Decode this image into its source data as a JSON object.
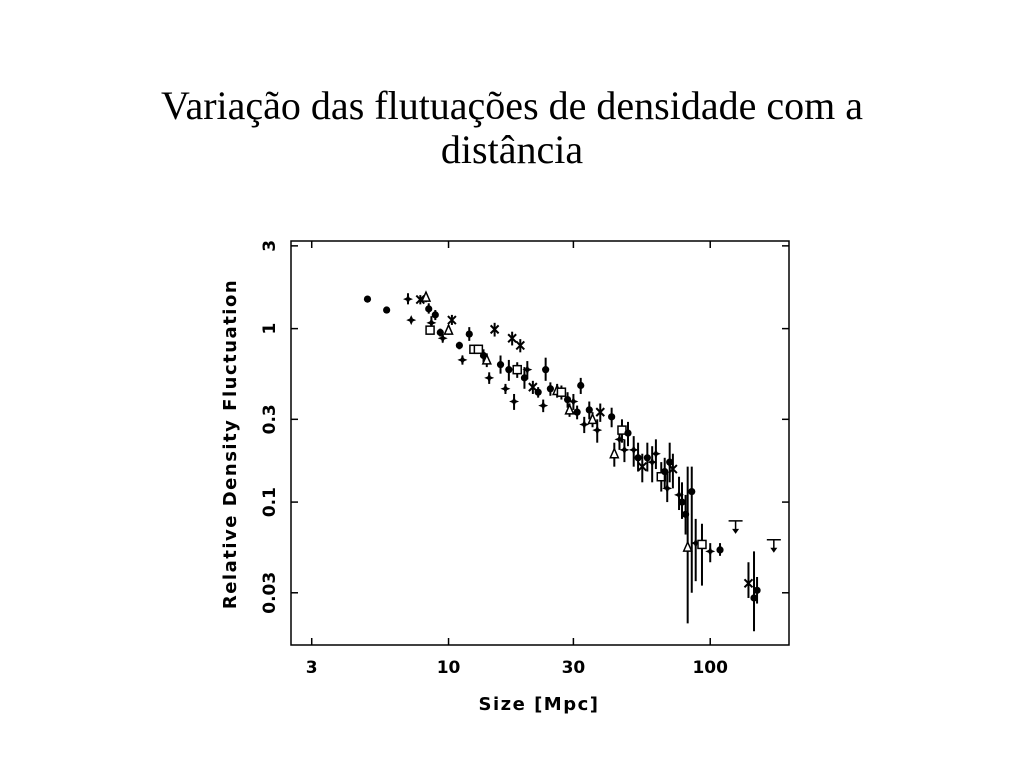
{
  "slide": {
    "title_line1": "Variação das flutuações de densidade com a",
    "title_line2": "distância"
  },
  "chart_data": {
    "type": "scatter",
    "title": "Variação das flutuações de densidade com a distância",
    "xlabel": "Size [Mpc]",
    "ylabel": "Relative Density Fluctuation",
    "x_scale": "log",
    "y_scale": "log",
    "xlim": [
      2.5,
      200
    ],
    "ylim": [
      0.015,
      3.2
    ],
    "x_ticks": [
      {
        "value": 3,
        "label": "3"
      },
      {
        "value": 10,
        "label": "10"
      },
      {
        "value": 30,
        "label": "30"
      },
      {
        "value": 100,
        "label": "100"
      }
    ],
    "y_ticks": [
      {
        "value": 3,
        "label": "3"
      },
      {
        "value": 1,
        "label": "1"
      },
      {
        "value": 0.3,
        "label": "0.3"
      },
      {
        "value": 0.1,
        "label": "0.1"
      },
      {
        "value": 0.03,
        "label": "0.03"
      }
    ],
    "grid": false,
    "legend": "none",
    "color": "#000000",
    "points": [
      {
        "x": 4.9,
        "y": 1.48,
        "lo": 1.46,
        "hi": 1.5,
        "m": "c"
      },
      {
        "x": 5.8,
        "y": 1.28,
        "lo": 1.25,
        "hi": 1.31,
        "m": "c"
      },
      {
        "x": 7.0,
        "y": 1.48,
        "lo": 1.38,
        "hi": 1.6,
        "m": "s"
      },
      {
        "x": 7.2,
        "y": 1.12,
        "lo": 1.08,
        "hi": 1.16,
        "m": "s"
      },
      {
        "x": 7.8,
        "y": 1.47,
        "lo": 1.38,
        "hi": 1.56,
        "m": "x"
      },
      {
        "x": 8.2,
        "y": 1.52,
        "lo": 1.42,
        "hi": 1.62,
        "m": "t"
      },
      {
        "x": 8.4,
        "y": 1.3,
        "lo": 1.22,
        "hi": 1.4,
        "m": "c"
      },
      {
        "x": 8.6,
        "y": 1.08,
        "lo": 1.0,
        "hi": 1.18,
        "m": "s"
      },
      {
        "x": 8.9,
        "y": 1.2,
        "lo": 1.12,
        "hi": 1.28,
        "m": "c"
      },
      {
        "x": 8.5,
        "y": 0.98,
        "lo": 0.95,
        "hi": 1.02,
        "m": "o"
      },
      {
        "x": 9.3,
        "y": 0.95,
        "lo": 0.9,
        "hi": 1.0,
        "m": "c"
      },
      {
        "x": 9.5,
        "y": 0.88,
        "lo": 0.83,
        "hi": 0.93,
        "m": "s"
      },
      {
        "x": 10.0,
        "y": 0.98,
        "lo": 0.92,
        "hi": 1.05,
        "m": "t"
      },
      {
        "x": 10.3,
        "y": 1.12,
        "lo": 1.05,
        "hi": 1.2,
        "m": "x"
      },
      {
        "x": 11.0,
        "y": 0.8,
        "lo": 0.76,
        "hi": 0.84,
        "m": "c"
      },
      {
        "x": 11.3,
        "y": 0.66,
        "lo": 0.62,
        "hi": 0.7,
        "m": "s"
      },
      {
        "x": 12.0,
        "y": 0.93,
        "lo": 0.85,
        "hi": 1.02,
        "m": "c"
      },
      {
        "x": 12.5,
        "y": 0.76,
        "lo": 0.73,
        "hi": 0.79,
        "m": "o"
      },
      {
        "x": 13.0,
        "y": 0.76,
        "lo": 0.73,
        "hi": 0.79,
        "m": "o"
      },
      {
        "x": 13.6,
        "y": 0.7,
        "lo": 0.64,
        "hi": 0.76,
        "m": "c"
      },
      {
        "x": 14.0,
        "y": 0.66,
        "lo": 0.6,
        "hi": 0.72,
        "m": "t"
      },
      {
        "x": 14.3,
        "y": 0.52,
        "lo": 0.48,
        "hi": 0.56,
        "m": "s"
      },
      {
        "x": 15.0,
        "y": 0.99,
        "lo": 0.9,
        "hi": 1.08,
        "m": "x"
      },
      {
        "x": 15.8,
        "y": 0.62,
        "lo": 0.55,
        "hi": 0.7,
        "m": "c"
      },
      {
        "x": 16.5,
        "y": 0.45,
        "lo": 0.42,
        "hi": 0.48,
        "m": "s"
      },
      {
        "x": 17.0,
        "y": 0.58,
        "lo": 0.5,
        "hi": 0.66,
        "m": "c"
      },
      {
        "x": 17.5,
        "y": 0.88,
        "lo": 0.8,
        "hi": 0.96,
        "m": "x"
      },
      {
        "x": 17.8,
        "y": 0.38,
        "lo": 0.34,
        "hi": 0.42,
        "m": "s"
      },
      {
        "x": 18.3,
        "y": 0.58,
        "lo": 0.52,
        "hi": 0.64,
        "m": "o"
      },
      {
        "x": 18.8,
        "y": 0.8,
        "lo": 0.73,
        "hi": 0.87,
        "m": "x"
      },
      {
        "x": 19.5,
        "y": 0.52,
        "lo": 0.45,
        "hi": 0.6,
        "m": "c"
      },
      {
        "x": 20.0,
        "y": 0.58,
        "lo": 0.51,
        "hi": 0.65,
        "m": "s"
      },
      {
        "x": 21.0,
        "y": 0.46,
        "lo": 0.42,
        "hi": 0.5,
        "m": "x"
      },
      {
        "x": 22.0,
        "y": 0.43,
        "lo": 0.4,
        "hi": 0.46,
        "m": "c"
      },
      {
        "x": 23.0,
        "y": 0.36,
        "lo": 0.33,
        "hi": 0.39,
        "m": "s"
      },
      {
        "x": 23.5,
        "y": 0.58,
        "lo": 0.5,
        "hi": 0.68,
        "m": "c"
      },
      {
        "x": 24.5,
        "y": 0.45,
        "lo": 0.41,
        "hi": 0.49,
        "m": "c"
      },
      {
        "x": 26.0,
        "y": 0.44,
        "lo": 0.4,
        "hi": 0.48,
        "m": "t"
      },
      {
        "x": 27.0,
        "y": 0.43,
        "lo": 0.39,
        "hi": 0.47,
        "m": "o"
      },
      {
        "x": 28.5,
        "y": 0.39,
        "lo": 0.35,
        "hi": 0.43,
        "m": "c"
      },
      {
        "x": 29.0,
        "y": 0.34,
        "lo": 0.31,
        "hi": 0.37,
        "m": "t"
      },
      {
        "x": 30.0,
        "y": 0.38,
        "lo": 0.34,
        "hi": 0.42,
        "m": "s"
      },
      {
        "x": 31.0,
        "y": 0.33,
        "lo": 0.3,
        "hi": 0.36,
        "m": "c"
      },
      {
        "x": 32.0,
        "y": 0.47,
        "lo": 0.42,
        "hi": 0.52,
        "m": "c"
      },
      {
        "x": 33.0,
        "y": 0.28,
        "lo": 0.25,
        "hi": 0.31,
        "m": "s"
      },
      {
        "x": 34.5,
        "y": 0.34,
        "lo": 0.3,
        "hi": 0.38,
        "m": "c"
      },
      {
        "x": 35.5,
        "y": 0.3,
        "lo": 0.27,
        "hi": 0.33,
        "m": "t"
      },
      {
        "x": 37.0,
        "y": 0.26,
        "lo": 0.22,
        "hi": 0.3,
        "m": "s"
      },
      {
        "x": 38.0,
        "y": 0.33,
        "lo": 0.29,
        "hi": 0.37,
        "m": "x"
      },
      {
        "x": 42.0,
        "y": 0.31,
        "lo": 0.27,
        "hi": 0.35,
        "m": "c"
      },
      {
        "x": 43.0,
        "y": 0.19,
        "lo": 0.16,
        "hi": 0.22,
        "m": "t"
      },
      {
        "x": 45.0,
        "y": 0.23,
        "lo": 0.2,
        "hi": 0.27,
        "m": "s"
      },
      {
        "x": 46.0,
        "y": 0.26,
        "lo": 0.22,
        "hi": 0.3,
        "m": "o"
      },
      {
        "x": 47.0,
        "y": 0.2,
        "lo": 0.17,
        "hi": 0.23,
        "m": "s"
      },
      {
        "x": 48.5,
        "y": 0.25,
        "lo": 0.21,
        "hi": 0.29,
        "m": "c"
      },
      {
        "x": 51.0,
        "y": 0.2,
        "lo": 0.16,
        "hi": 0.24,
        "m": "s"
      },
      {
        "x": 53.0,
        "y": 0.18,
        "lo": 0.15,
        "hi": 0.22,
        "m": "c"
      },
      {
        "x": 55.0,
        "y": 0.16,
        "lo": 0.13,
        "hi": 0.19,
        "m": "x"
      },
      {
        "x": 57.5,
        "y": 0.18,
        "lo": 0.15,
        "hi": 0.22,
        "m": "c"
      },
      {
        "x": 60.0,
        "y": 0.17,
        "lo": 0.13,
        "hi": 0.21,
        "m": "s"
      },
      {
        "x": 62.0,
        "y": 0.19,
        "lo": 0.155,
        "hi": 0.23,
        "m": "s"
      },
      {
        "x": 65.0,
        "y": 0.14,
        "lo": 0.115,
        "hi": 0.17,
        "m": "o"
      },
      {
        "x": 67.0,
        "y": 0.15,
        "lo": 0.12,
        "hi": 0.18,
        "m": "c"
      },
      {
        "x": 68.5,
        "y": 0.12,
        "lo": 0.1,
        "hi": 0.15,
        "m": "s"
      },
      {
        "x": 70.0,
        "y": 0.17,
        "lo": 0.13,
        "hi": 0.22,
        "m": "c"
      },
      {
        "x": 72.0,
        "y": 0.155,
        "lo": 0.12,
        "hi": 0.19,
        "m": "x"
      },
      {
        "x": 76.0,
        "y": 0.11,
        "lo": 0.09,
        "hi": 0.14,
        "m": "s"
      },
      {
        "x": 78.0,
        "y": 0.1,
        "lo": 0.08,
        "hi": 0.13,
        "m": "c"
      },
      {
        "x": 80.5,
        "y": 0.085,
        "lo": 0.065,
        "hi": 0.11,
        "m": "c"
      },
      {
        "x": 82.0,
        "y": 0.055,
        "lo": 0.02,
        "hi": 0.16,
        "m": "t"
      },
      {
        "x": 85.0,
        "y": 0.115,
        "lo": 0.03,
        "hi": 0.16,
        "m": "c"
      },
      {
        "x": 88.0,
        "y": 0.058,
        "lo": 0.035,
        "hi": 0.08,
        "m": "s"
      },
      {
        "x": 93.0,
        "y": 0.057,
        "lo": 0.033,
        "hi": 0.075,
        "m": "o"
      },
      {
        "x": 100.0,
        "y": 0.052,
        "lo": 0.045,
        "hi": 0.058,
        "m": "s"
      },
      {
        "x": 109.0,
        "y": 0.053,
        "lo": 0.049,
        "hi": 0.058,
        "m": "c"
      },
      {
        "x": 125.0,
        "y": 0.072,
        "lo": 0.072,
        "hi": 0.072,
        "m": "u"
      },
      {
        "x": 140.0,
        "y": 0.034,
        "lo": 0.028,
        "hi": 0.045,
        "m": "x"
      },
      {
        "x": 147.0,
        "y": 0.028,
        "lo": 0.018,
        "hi": 0.052,
        "m": "c"
      },
      {
        "x": 151.0,
        "y": 0.031,
        "lo": 0.026,
        "hi": 0.037,
        "m": "c"
      },
      {
        "x": 175.0,
        "y": 0.056,
        "lo": 0.056,
        "hi": 0.056,
        "m": "u"
      }
    ]
  }
}
